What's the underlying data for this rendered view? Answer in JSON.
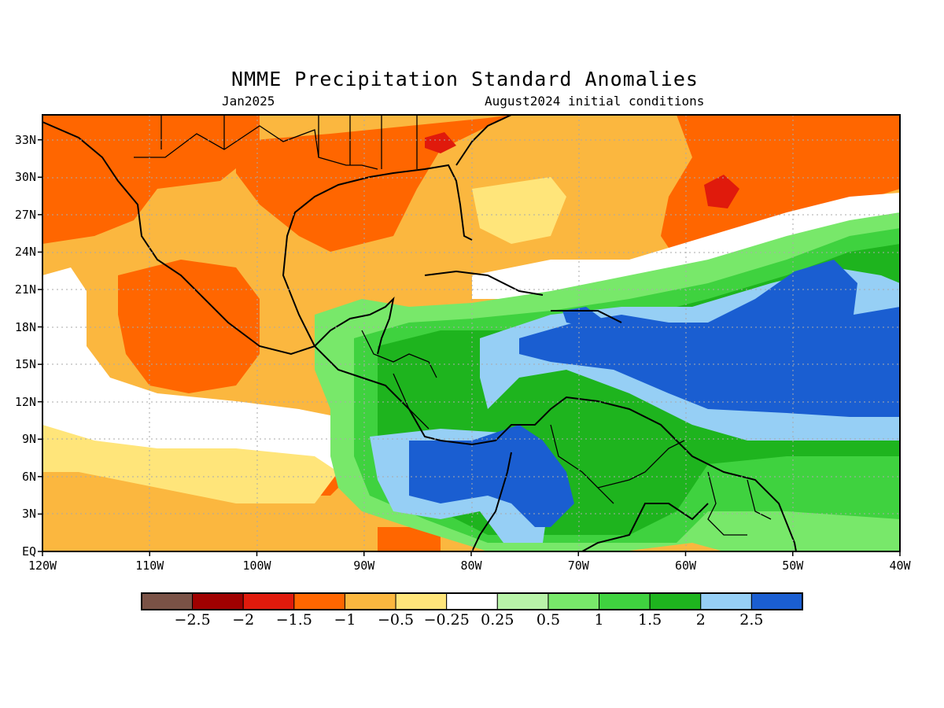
{
  "title": "NMME Precipitation Standard Anomalies",
  "subtitle_left": "Jan2025",
  "subtitle_right": "August2024 initial conditions",
  "map": {
    "region": "Central America / Caribbean / Gulf of Mexico",
    "lon_range": [
      -120,
      -40
    ],
    "lat_range": [
      0,
      35
    ],
    "lat_labels": [
      "33N",
      "30N",
      "27N",
      "24N",
      "21N",
      "18N",
      "15N",
      "12N",
      "9N",
      "6N",
      "3N",
      "EQ"
    ],
    "lon_labels": [
      "120W",
      "110W",
      "100W",
      "90W",
      "80W",
      "70W",
      "60W",
      "50W",
      "40W"
    ],
    "grid": "dotted"
  },
  "colorbar": {
    "colors": [
      "#7a5246",
      "#a00000",
      "#e01a0c",
      "#ff6600",
      "#fbb73f",
      "#ffe57a",
      "#ffffff",
      "#b8f3a8",
      "#78e86a",
      "#3fd23f",
      "#1eb41e",
      "#96cff5",
      "#1a5ed1"
    ],
    "labels": [
      "−2.5",
      "−2",
      "−1.5",
      "−1",
      "−0.5",
      "−0.25",
      "0.25",
      "0.5",
      "1",
      "1.5",
      "2",
      "2.5"
    ]
  }
}
